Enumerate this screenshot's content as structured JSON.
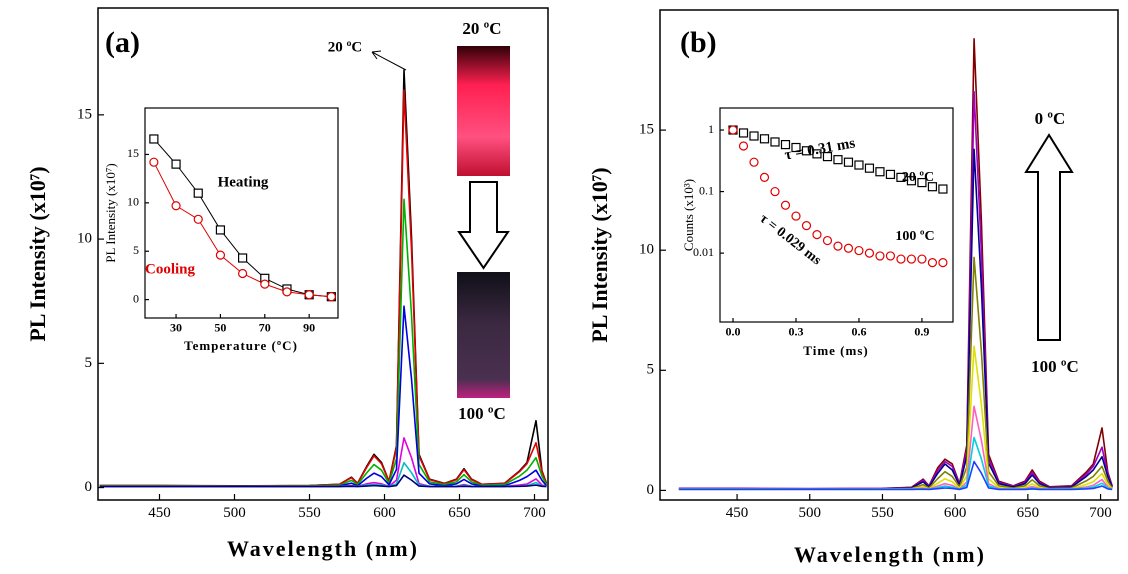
{
  "chart_data": [
    {
      "type": "line",
      "xlabel": "Wavelength (nm)",
      "ylabel": "PL Intensity (x10⁷)",
      "x": [
        410,
        450,
        500,
        550,
        570,
        578,
        582,
        588,
        593,
        598,
        603,
        608,
        613,
        618,
        623,
        630,
        640,
        648,
        653,
        658,
        665,
        680,
        690,
        695,
        701,
        705,
        708
      ],
      "xlim": [
        409,
        709
      ],
      "xticks": [
        450,
        500,
        550,
        600,
        650,
        700
      ],
      "ylim": [
        -0.5,
        19.3
      ],
      "yticks": [
        0,
        5,
        10,
        15
      ],
      "series": [
        {
          "color": "#000000",
          "values": [
            0.08,
            0.08,
            0.07,
            0.08,
            0.13,
            0.42,
            0.17,
            0.84,
            1.34,
            1.01,
            0.25,
            1.68,
            16.8,
            10.08,
            1.34,
            0.34,
            0.17,
            0.34,
            0.76,
            0.34,
            0.13,
            0.17,
            0.67,
            1.01,
            2.69,
            0.67,
            0.17
          ]
        },
        {
          "color": "#e00000",
          "values": [
            0.08,
            0.08,
            0.06,
            0.08,
            0.13,
            0.4,
            0.16,
            0.8,
            1.28,
            0.96,
            0.24,
            1.6,
            16.0,
            9.6,
            1.28,
            0.32,
            0.16,
            0.32,
            0.72,
            0.32,
            0.13,
            0.16,
            0.64,
            0.96,
            1.8,
            0.64,
            0.16
          ]
        },
        {
          "color": "#00b000",
          "values": [
            0.06,
            0.06,
            0.05,
            0.06,
            0.09,
            0.29,
            0.12,
            0.58,
            0.93,
            0.7,
            0.17,
            1.16,
            11.6,
            6.96,
            0.93,
            0.23,
            0.12,
            0.23,
            0.52,
            0.23,
            0.09,
            0.12,
            0.46,
            0.7,
            1.2,
            0.46,
            0.12
          ]
        },
        {
          "color": "#0000e0",
          "values": [
            0.05,
            0.05,
            0.05,
            0.05,
            0.06,
            0.18,
            0.07,
            0.37,
            0.58,
            0.44,
            0.11,
            0.73,
            7.3,
            4.38,
            0.58,
            0.15,
            0.07,
            0.15,
            0.33,
            0.15,
            0.06,
            0.07,
            0.29,
            0.44,
            0.7,
            0.29,
            0.07
          ]
        },
        {
          "color": "#e000e0",
          "values": [
            0.05,
            0.05,
            0.05,
            0.05,
            0.05,
            0.08,
            0.05,
            0.15,
            0.2,
            0.15,
            0.05,
            0.3,
            2.0,
            1.2,
            0.16,
            0.05,
            0.05,
            0.05,
            0.12,
            0.05,
            0.05,
            0.05,
            0.1,
            0.14,
            0.35,
            0.1,
            0.05
          ]
        },
        {
          "color": "#00c0c0",
          "values": [
            0.05,
            0.05,
            0.05,
            0.05,
            0.05,
            0.06,
            0.05,
            0.1,
            0.12,
            0.1,
            0.05,
            0.15,
            1.0,
            0.6,
            0.1,
            0.05,
            0.05,
            0.05,
            0.08,
            0.05,
            0.05,
            0.05,
            0.06,
            0.08,
            0.2,
            0.06,
            0.05
          ]
        },
        {
          "color": "#000080",
          "values": [
            0.04,
            0.04,
            0.04,
            0.04,
            0.04,
            0.05,
            0.04,
            0.06,
            0.08,
            0.06,
            0.04,
            0.08,
            0.5,
            0.3,
            0.06,
            0.04,
            0.04,
            0.04,
            0.05,
            0.04,
            0.04,
            0.04,
            0.05,
            0.06,
            0.1,
            0.05,
            0.04
          ]
        }
      ],
      "annotations": [
        {
          "text": "(a)"
        },
        {
          "text": "20 ºC"
        },
        {
          "text": "20 ºC"
        },
        {
          "text": "100 ºC"
        }
      ]
    },
    {
      "type": "line",
      "xlabel": "Temperature (ºC)",
      "ylabel": "PL Intensity (x10⁷)",
      "x": [
        20,
        30,
        40,
        50,
        60,
        70,
        80,
        90,
        100
      ],
      "xlim": [
        16,
        103
      ],
      "xticks": [
        30,
        50,
        70,
        90
      ],
      "ylim": [
        -1.9,
        19.8
      ],
      "yticks": [
        0,
        5,
        10,
        15
      ],
      "series": [
        {
          "color": "#000000",
          "marker": "square",
          "values": [
            16.6,
            14,
            11,
            7.2,
            4.3,
            2.2,
            1.1,
            0.5,
            0.3
          ]
        },
        {
          "color": "#e00000",
          "marker": "circle",
          "values": [
            14.2,
            9.7,
            8.3,
            4.6,
            2.7,
            1.6,
            0.8,
            0.5,
            0.3
          ]
        }
      ],
      "annotations": [
        {
          "text": "Heating",
          "color": "#000000"
        },
        {
          "text": "Cooling",
          "color": "#e00000"
        }
      ]
    },
    {
      "type": "line",
      "xlabel": "Wavelength (nm)",
      "ylabel": "PL Intensity (x10⁷)",
      "x": [
        410,
        450,
        500,
        550,
        570,
        578,
        582,
        588,
        593,
        598,
        603,
        608,
        613,
        618,
        623,
        630,
        640,
        648,
        653,
        658,
        665,
        680,
        690,
        695,
        701,
        705,
        708
      ],
      "xlim": [
        397,
        712
      ],
      "xticks": [
        450,
        500,
        550,
        600,
        650,
        700
      ],
      "ylim": [
        -0.4,
        20
      ],
      "yticks": [
        0,
        5,
        10,
        15
      ],
      "series": [
        {
          "color": "#800000",
          "values": [
            0.08,
            0.08,
            0.07,
            0.08,
            0.13,
            0.47,
            0.19,
            0.94,
            1.3,
            1.1,
            0.28,
            1.88,
            18.8,
            11.28,
            1.5,
            0.38,
            0.19,
            0.38,
            0.85,
            0.38,
            0.15,
            0.19,
            0.75,
            1.1,
            2.6,
            0.75,
            0.19
          ]
        },
        {
          "color": "#a000c0",
          "values": [
            0.08,
            0.08,
            0.07,
            0.08,
            0.12,
            0.42,
            0.17,
            0.83,
            1.2,
            1.0,
            0.25,
            1.66,
            16.6,
            9.96,
            1.33,
            0.33,
            0.17,
            0.33,
            0.75,
            0.33,
            0.13,
            0.17,
            0.66,
            1.0,
            1.8,
            0.66,
            0.17
          ]
        },
        {
          "color": "#000090",
          "values": [
            0.07,
            0.07,
            0.06,
            0.07,
            0.11,
            0.36,
            0.14,
            0.71,
            1.1,
            0.85,
            0.21,
            1.42,
            14.2,
            8.52,
            1.14,
            0.28,
            0.14,
            0.28,
            0.64,
            0.28,
            0.11,
            0.14,
            0.57,
            0.85,
            1.4,
            0.57,
            0.14
          ]
        },
        {
          "color": "#808000",
          "values": [
            0.06,
            0.06,
            0.05,
            0.06,
            0.08,
            0.24,
            0.1,
            0.49,
            0.78,
            0.58,
            0.15,
            0.97,
            9.7,
            5.82,
            0.78,
            0.19,
            0.1,
            0.19,
            0.44,
            0.19,
            0.08,
            0.1,
            0.39,
            0.58,
            1.0,
            0.39,
            0.1
          ]
        },
        {
          "color": "#e0e000",
          "values": [
            0.05,
            0.05,
            0.05,
            0.05,
            0.06,
            0.15,
            0.06,
            0.3,
            0.48,
            0.36,
            0.09,
            0.6,
            6.0,
            3.6,
            0.48,
            0.12,
            0.06,
            0.12,
            0.27,
            0.12,
            0.05,
            0.06,
            0.24,
            0.36,
            0.7,
            0.24,
            0.06
          ]
        },
        {
          "color": "#ff60c0",
          "values": [
            0.05,
            0.05,
            0.05,
            0.05,
            0.05,
            0.09,
            0.05,
            0.18,
            0.28,
            0.21,
            0.05,
            0.35,
            3.5,
            2.1,
            0.28,
            0.07,
            0.05,
            0.07,
            0.16,
            0.07,
            0.05,
            0.05,
            0.14,
            0.21,
            0.45,
            0.14,
            0.05
          ]
        },
        {
          "color": "#00d0e0",
          "values": [
            0.05,
            0.05,
            0.05,
            0.05,
            0.05,
            0.06,
            0.05,
            0.11,
            0.18,
            0.13,
            0.05,
            0.22,
            2.2,
            1.32,
            0.18,
            0.05,
            0.05,
            0.05,
            0.1,
            0.05,
            0.05,
            0.05,
            0.09,
            0.13,
            0.3,
            0.09,
            0.05
          ]
        },
        {
          "color": "#2040ff",
          "values": [
            0.04,
            0.04,
            0.04,
            0.04,
            0.04,
            0.05,
            0.04,
            0.07,
            0.1,
            0.08,
            0.04,
            0.12,
            1.2,
            0.72,
            0.1,
            0.04,
            0.04,
            0.04,
            0.06,
            0.04,
            0.04,
            0.04,
            0.06,
            0.08,
            0.18,
            0.06,
            0.04
          ]
        }
      ],
      "annotations": [
        {
          "text": "(b)"
        },
        {
          "text": "0 ºC"
        },
        {
          "text": "100 ºC"
        }
      ]
    },
    {
      "type": "scatter",
      "xlabel": "Time (ms)",
      "ylabel": "Counts (x10³)",
      "log_y": true,
      "x": [
        0,
        0.05,
        0.1,
        0.15,
        0.2,
        0.25,
        0.3,
        0.35,
        0.4,
        0.45,
        0.5,
        0.55,
        0.6,
        0.65,
        0.7,
        0.75,
        0.8,
        0.85,
        0.9,
        0.95,
        1.0
      ],
      "xlim": [
        -0.062,
        1.048
      ],
      "xticks": [
        {
          "value": 0,
          "label": "0.0"
        },
        0.3,
        0.6,
        0.9
      ],
      "ylim": [
        0.00076,
        2.28
      ],
      "yticks": [
        0.01,
        0.1,
        1
      ],
      "series": [
        {
          "color": "#000000",
          "marker": "square",
          "values": [
            1,
            0.896,
            0.8,
            0.72,
            0.64,
            0.58,
            0.52,
            0.46,
            0.41,
            0.37,
            0.33,
            0.3,
            0.27,
            0.24,
            0.21,
            0.19,
            0.17,
            0.15,
            0.14,
            0.12,
            0.11
          ]
        },
        {
          "color": "#e00000",
          "marker": "circle",
          "values": [
            1,
            0.55,
            0.3,
            0.17,
            0.1,
            0.06,
            0.04,
            0.028,
            0.02,
            0.016,
            0.013,
            0.012,
            0.011,
            0.01,
            0.009,
            0.009,
            0.008,
            0.008,
            0.008,
            0.007,
            0.007
          ]
        }
      ],
      "annotations": [
        {
          "text": "τ = 0.31 ms"
        },
        {
          "text": "20 ºC"
        },
        {
          "text": "100 ºC"
        },
        {
          "text": "τ = 0.029 ms",
          "color": "#000000"
        }
      ]
    }
  ]
}
